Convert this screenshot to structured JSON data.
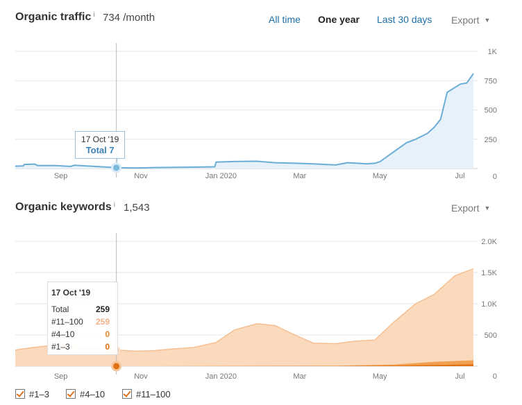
{
  "traffic": {
    "title": "Organic traffic",
    "info_icon": "i",
    "metric": "734 /month",
    "ranges": [
      "All time",
      "One year",
      "Last 30 days"
    ],
    "active_range": "One year",
    "export_label": "Export",
    "tooltip": {
      "date": "17 Oct '19",
      "total": "Total 7"
    }
  },
  "keywords": {
    "title": "Organic keywords",
    "info_icon": "i",
    "metric": "1,543",
    "export_label": "Export",
    "tooltip": {
      "date": "17 Oct '19",
      "rows": [
        {
          "label": "Total",
          "value": "259",
          "color": "#222222"
        },
        {
          "label": "#11–100",
          "value": "259",
          "color": "#f4b183"
        },
        {
          "label": "#4–10",
          "value": "0",
          "color": "#e08a2c"
        },
        {
          "label": "#1–3",
          "value": "0",
          "color": "#d9700f"
        }
      ]
    },
    "legend": [
      "#1–3",
      "#4–10",
      "#11–100"
    ]
  },
  "colors": {
    "traffic_line": "#6aaed6",
    "traffic_fill": "#e6f1fa",
    "kw_11_100": "#fbd9bd",
    "kw_11_100_line": "#f6bf92",
    "kw_4_10": "#f0a050",
    "kw_1_3": "#e07010"
  },
  "chart_data": [
    {
      "type": "area",
      "title": "Organic traffic",
      "x_ticks": [
        "Sep",
        "Nov",
        "Jan 2020",
        "Mar",
        "May",
        "Jul"
      ],
      "y_ticks": [
        "0",
        "250",
        "500",
        "750",
        "1K"
      ],
      "ylim": [
        0,
        1000
      ],
      "grid": true,
      "series": [
        {
          "x": [
            "2019-08-01",
            "2019-08-07",
            "2019-08-08",
            "2019-08-16",
            "2019-08-18",
            "2019-09-01",
            "2019-09-12",
            "2019-09-15",
            "2019-10-01",
            "2019-10-17",
            "2019-11-01",
            "2019-11-15",
            "2019-12-01",
            "2019-12-15",
            "2019-12-31",
            "2020-01-01",
            "2020-01-15",
            "2020-02-01",
            "2020-02-15",
            "2020-03-01",
            "2020-03-15",
            "2020-04-01",
            "2020-04-10",
            "2020-04-25",
            "2020-05-01",
            "2020-05-05",
            "2020-05-15",
            "2020-05-25",
            "2020-06-01",
            "2020-06-10",
            "2020-06-15",
            "2020-06-20",
            "2020-06-25",
            "2020-07-05",
            "2020-07-10",
            "2020-07-15"
          ],
          "values": [
            20,
            22,
            35,
            38,
            25,
            25,
            18,
            28,
            18,
            7,
            5,
            8,
            10,
            12,
            15,
            55,
            60,
            62,
            50,
            45,
            40,
            30,
            50,
            40,
            45,
            60,
            140,
            220,
            250,
            300,
            350,
            420,
            650,
            720,
            730,
            810
          ]
        }
      ]
    },
    {
      "type": "area",
      "title": "Organic keywords",
      "x_ticks": [
        "Sep",
        "Nov",
        "Jan 2020",
        "Mar",
        "May",
        "Jul"
      ],
      "y_ticks": [
        "0",
        "500",
        "1.0K",
        "1.5K",
        "2.0K"
      ],
      "ylim": [
        0,
        2000
      ],
      "grid": true,
      "series": [
        {
          "name": "#11–100",
          "x": [
            "2019-08-01",
            "2019-08-15",
            "2019-09-01",
            "2019-09-15",
            "2019-10-01",
            "2019-10-17",
            "2019-11-01",
            "2019-11-15",
            "2019-12-01",
            "2019-12-15",
            "2020-01-01",
            "2020-01-15",
            "2020-02-01",
            "2020-02-15",
            "2020-03-01",
            "2020-03-15",
            "2020-04-01",
            "2020-04-15",
            "2020-05-01",
            "2020-05-15",
            "2020-06-01",
            "2020-06-15",
            "2020-07-01",
            "2020-07-15"
          ],
          "values": [
            260,
            300,
            340,
            320,
            280,
            259,
            240,
            250,
            280,
            300,
            380,
            580,
            680,
            650,
            500,
            370,
            360,
            400,
            420,
            700,
            1000,
            1150,
            1450,
            1560
          ]
        },
        {
          "name": "#4–10",
          "x": [
            "2019-08-01",
            "2019-10-17",
            "2020-04-01",
            "2020-05-15",
            "2020-06-15",
            "2020-07-15"
          ],
          "values": [
            0,
            0,
            5,
            25,
            70,
            95
          ]
        },
        {
          "name": "#1–3",
          "x": [
            "2019-08-01",
            "2019-10-17",
            "2020-04-01",
            "2020-05-15",
            "2020-06-15",
            "2020-07-15"
          ],
          "values": [
            0,
            0,
            2,
            8,
            18,
            30
          ]
        }
      ]
    }
  ]
}
